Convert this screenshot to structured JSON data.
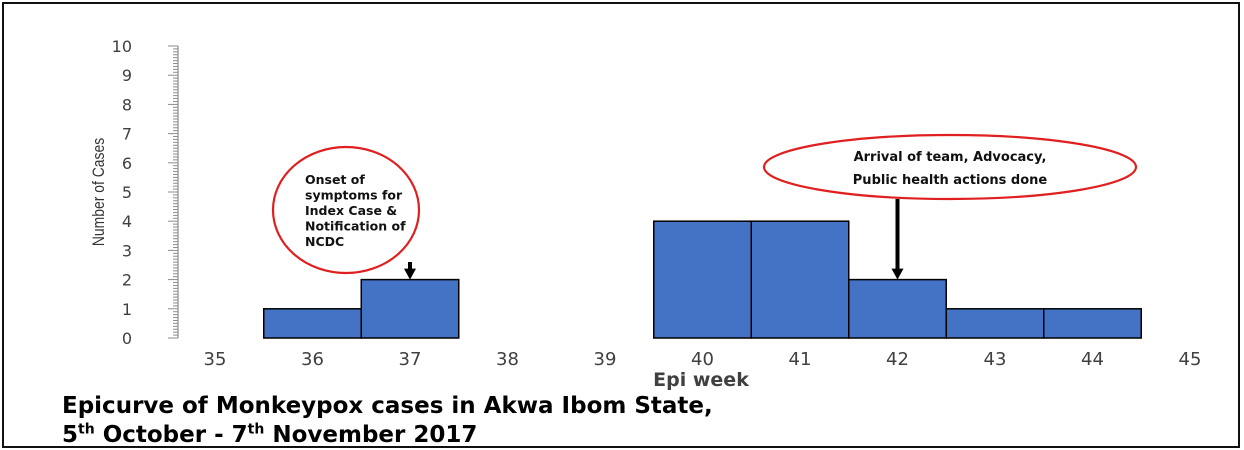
{
  "chart_data": {
    "type": "bar",
    "x_ticks": [
      35,
      36,
      37,
      38,
      39,
      40,
      41,
      42,
      43,
      44,
      45
    ],
    "categories": [
      36,
      37,
      40,
      41,
      42,
      43,
      44
    ],
    "values": [
      1,
      2,
      4,
      4,
      2,
      1,
      1
    ],
    "xlabel": "Epi week",
    "ylabel": "Number of Cases",
    "ylim": [
      0,
      10
    ],
    "y_ticks": [
      0,
      1,
      2,
      3,
      4,
      5,
      6,
      7,
      8,
      9,
      10
    ],
    "bar_color": "#4472c4",
    "bar_edge_color": "#000000",
    "annotations": [
      {
        "lines": [
          "Onset of",
          "symptoms for",
          "Index Case &",
          "Notification of",
          "NCDC"
        ],
        "points_to_week": 37,
        "border_color": "#e02020"
      },
      {
        "lines": [
          "Arrival of team, Advocacy,",
          "Public health actions done"
        ],
        "points_to_week": 42,
        "border_color": "#e02020"
      }
    ]
  },
  "caption": {
    "line1": "Epicurve of Monkeypox cases in Akwa Ibom State,",
    "line2_day1": "5",
    "line2_sup1": "th",
    "line2_mid": " October - 7",
    "line2_sup2": "th",
    "line2_end": " November 2017"
  }
}
